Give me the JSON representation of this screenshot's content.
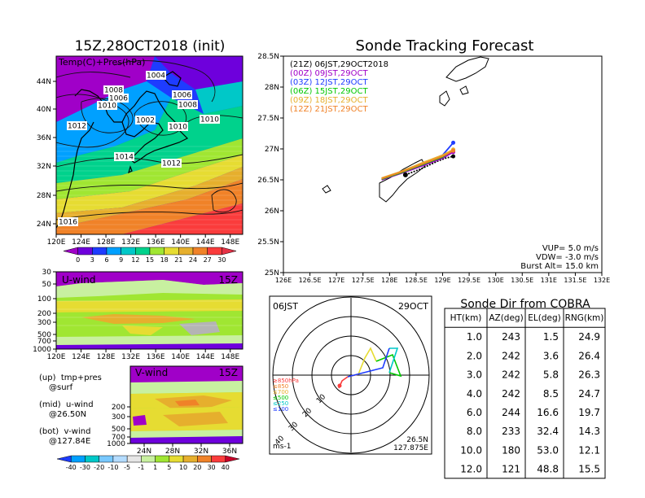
{
  "left_panel": {
    "title": "15Z,28OCT2018 (init)",
    "map_label": "Temp(C)+Pres(hPa)",
    "lat_ticks": [
      "44N",
      "40N",
      "36N",
      "32N",
      "28N",
      "24N"
    ],
    "lon_ticks": [
      "120E",
      "124E",
      "128E",
      "132E",
      "136E",
      "140E",
      "144E",
      "148E"
    ],
    "pressure_labels": [
      "1004",
      "1008",
      "1006",
      "1010",
      "1012",
      "1002",
      "1014",
      "1006",
      "1008",
      "1010",
      "1010",
      "1012",
      "1016"
    ],
    "temp_colorbar_ticks": [
      "0",
      "3",
      "6",
      "9",
      "12",
      "15",
      "18",
      "21",
      "24",
      "27",
      "30"
    ],
    "temp_colors": [
      "#a000c8",
      "#6e00dc",
      "#1e3cff",
      "#00a0ff",
      "#00c8c8",
      "#00d28c",
      "#a0e632",
      "#e6dc32",
      "#e6af2d",
      "#f08228",
      "#fa3c3c",
      "#e63246"
    ]
  },
  "uwind_panel": {
    "label": "U-wind",
    "time": "15Z",
    "p_ticks": [
      "30",
      "50",
      "100",
      "200",
      "300",
      "500",
      "700",
      "1000"
    ],
    "lon_ticks": [
      "120E",
      "124E",
      "128E",
      "132E",
      "136E",
      "140E",
      "144E",
      "148E"
    ]
  },
  "vwind_panel": {
    "label": "V-wind",
    "time": "15Z",
    "p_ticks": [
      "200",
      "300",
      "500",
      "700",
      "1000"
    ],
    "lat_ticks": [
      "24N",
      "28N",
      "32N",
      "36N"
    ],
    "colorbar_ticks": [
      "-40",
      "-30",
      "-20",
      "-10",
      "-5",
      "-1",
      "1",
      "5",
      "10",
      "20",
      "30",
      "40"
    ],
    "colorbar_colors": [
      "#1e3cff",
      "#00a0ff",
      "#00c8c8",
      "#78c8ff",
      "#b4dcff",
      "#e6e6e6",
      "#c8f0a0",
      "#a0e632",
      "#e6dc32",
      "#e6af2d",
      "#f08228",
      "#fa3c3c",
      "#c80028"
    ]
  },
  "notes": {
    "up": "(up)  tmp+pres",
    "up2": "@surf",
    "mid": "(mid)  u-wind",
    "mid2": "@26.50N",
    "bot": "(bot)  v-wind",
    "bot2": "@127.84E"
  },
  "tracking": {
    "title": "Sonde Tracking Forecast",
    "lat_ticks": [
      "28.5N",
      "28N",
      "27.5N",
      "27N",
      "26.5N",
      "26N",
      "25.5N",
      "25N"
    ],
    "lon_ticks": [
      "126E",
      "126.5E",
      "127E",
      "127.5E",
      "128E",
      "128.5E",
      "129E",
      "129.5E",
      "130E",
      "130.5E",
      "131E",
      "131.5E",
      "132E"
    ],
    "legend": [
      {
        "text": "(21Z)  06JST,29OCT2018",
        "color": "#000000"
      },
      {
        "text": "(00Z)  09JST,29OCT",
        "color": "#a000c8"
      },
      {
        "text": "(03Z)  12JST,29OCT",
        "color": "#1e3cff"
      },
      {
        "text": "(06Z)  15JST,29OCT",
        "color": "#00c800"
      },
      {
        "text": "(09Z)  18JST,29OCT",
        "color": "#e6af2d"
      },
      {
        "text": "(12Z)  21JST,29OCT",
        "color": "#f08228"
      }
    ],
    "vup": "VUP=  5.0 m/s",
    "vdw": "VDW= -3.0 m/s",
    "burst": "Burst Alt= 15.0 km"
  },
  "polar": {
    "time_left": "06JST",
    "time_right": "29OCT",
    "ring_labels": [
      "10",
      "20",
      "30",
      "40"
    ],
    "levels": [
      {
        "text": "≥850hPa",
        "color": "#fa3c3c"
      },
      {
        "text": "≤850",
        "color": "#f08228"
      },
      {
        "text": "≤700",
        "color": "#e6af2d"
      },
      {
        "text": "≤500",
        "color": "#00c800"
      },
      {
        "text": "≤250",
        "color": "#00c8c8"
      },
      {
        "text": "≤100",
        "color": "#1e3cff"
      }
    ],
    "unit": "ms-1",
    "loc_lat": "26.5N",
    "loc_lon": "127.875E"
  },
  "sonde_table": {
    "title": "Sonde Dir from COBRA",
    "headers": [
      "HT(km)",
      "AZ(deg)",
      "EL(deg)",
      "RNG(km)"
    ],
    "rows": [
      [
        "1.0",
        "243",
        "1.5",
        "24.9"
      ],
      [
        "2.0",
        "242",
        "3.6",
        "26.4"
      ],
      [
        "3.0",
        "242",
        "5.8",
        "26.3"
      ],
      [
        "4.0",
        "242",
        "8.5",
        "24.7"
      ],
      [
        "6.0",
        "244",
        "16.6",
        "19.7"
      ],
      [
        "8.0",
        "233",
        "32.4",
        "14.3"
      ],
      [
        "10.0",
        "180",
        "53.0",
        "12.1"
      ],
      [
        "12.0",
        "121",
        "48.8",
        "15.5"
      ]
    ]
  },
  "chart_data": [
    {
      "type": "heatmap",
      "title": "15Z,28OCT2018 (init)",
      "subtitle": "Temp(C)+Pres(hPa)",
      "x_range": [
        120,
        150
      ],
      "y_range": [
        22,
        48
      ],
      "colorbar": [
        0,
        3,
        6,
        9,
        12,
        15,
        18,
        21,
        24,
        27,
        30
      ],
      "contour_labels_hPa": [
        1002,
        1004,
        1006,
        1008,
        1010,
        1012,
        1014,
        1016
      ]
    },
    {
      "type": "heatmap",
      "title": "U-wind",
      "x_range": [
        120,
        150
      ],
      "y_levels_hPa": [
        30,
        50,
        100,
        200,
        300,
        500,
        700,
        1000
      ]
    },
    {
      "type": "heatmap",
      "title": "V-wind",
      "x_range": [
        22,
        38
      ],
      "y_levels_hPa": [
        200,
        300,
        500,
        700,
        1000
      ],
      "colorbar": [
        -40,
        -30,
        -20,
        -10,
        -5,
        -1,
        1,
        5,
        10,
        20,
        30,
        40
      ]
    },
    {
      "type": "line",
      "title": "Sonde Tracking Forecast",
      "xlim": [
        126,
        132
      ],
      "ylim": [
        25,
        28.5
      ],
      "series": [
        {
          "name": "(21Z)  06JST,29OCT2018",
          "x": [
            128.3,
            128.6,
            128.9,
            129.05,
            129.2
          ],
          "y": [
            26.58,
            26.68,
            26.8,
            26.85,
            26.88
          ]
        },
        {
          "name": "(00Z)  09JST,29OCT",
          "x": [
            127.85,
            128.2,
            128.6,
            129.0,
            129.2
          ],
          "y": [
            26.5,
            26.6,
            26.72,
            26.85,
            26.95
          ]
        },
        {
          "name": "(03Z)  12JST,29OCT",
          "x": [
            127.85,
            128.2,
            128.6,
            129.0,
            129.2
          ],
          "y": [
            26.52,
            26.62,
            26.76,
            26.9,
            27.1
          ]
        },
        {
          "name": "(06Z)  15JST,29OCT",
          "x": [
            127.85,
            128.2,
            128.6,
            129.0,
            129.2
          ],
          "y": [
            26.51,
            26.61,
            26.74,
            26.87,
            26.98
          ]
        },
        {
          "name": "(09Z)  18JST,29OCT",
          "x": [
            127.85,
            128.2,
            128.6,
            129.0,
            129.2
          ],
          "y": [
            26.53,
            26.63,
            26.77,
            26.9,
            26.99
          ]
        },
        {
          "name": "(12Z)  21JST,29OCT",
          "x": [
            127.85,
            128.2,
            128.6,
            129.0,
            129.2
          ],
          "y": [
            26.52,
            26.62,
            26.75,
            26.88,
            26.97
          ]
        }
      ]
    },
    {
      "type": "table",
      "title": "Sonde Dir from COBRA",
      "columns": [
        "HT(km)",
        "AZ(deg)",
        "EL(deg)",
        "RNG(km)"
      ],
      "rows": [
        [
          1.0,
          243,
          1.5,
          24.9
        ],
        [
          2.0,
          242,
          3.6,
          26.4
        ],
        [
          3.0,
          242,
          5.8,
          26.3
        ],
        [
          4.0,
          242,
          8.5,
          24.7
        ],
        [
          6.0,
          244,
          16.6,
          19.7
        ],
        [
          8.0,
          233,
          32.4,
          14.3
        ],
        [
          10.0,
          180,
          53.0,
          12.1
        ],
        [
          12.0,
          121,
          48.8,
          15.5
        ]
      ]
    }
  ]
}
